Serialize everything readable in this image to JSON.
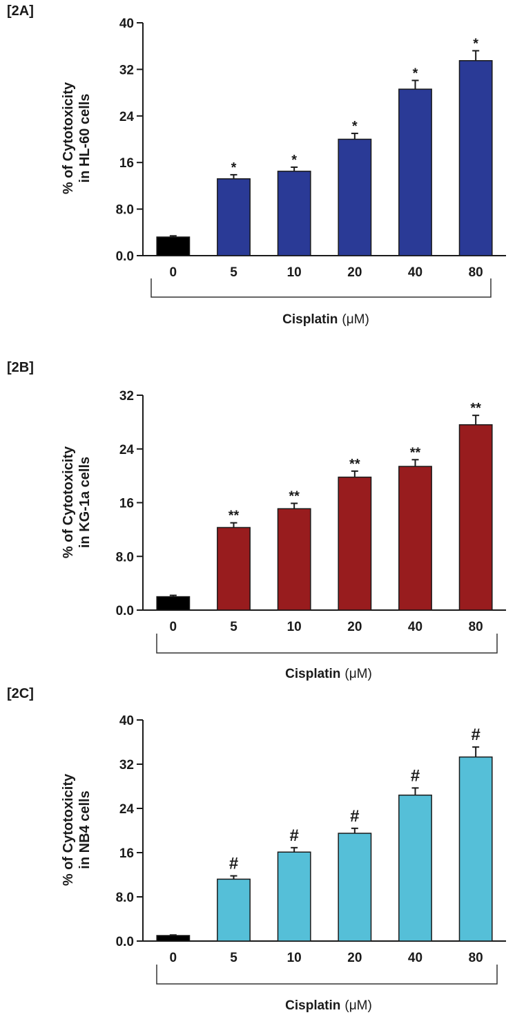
{
  "chart_data": [
    {
      "type": "bar",
      "panel_label": "[2A]",
      "categories": [
        "0",
        "5",
        "10",
        "20",
        "40",
        "80"
      ],
      "values": [
        3.2,
        13.2,
        14.5,
        20.0,
        28.6,
        33.5
      ],
      "errors": [
        0.2,
        0.7,
        0.7,
        1.0,
        1.5,
        1.7
      ],
      "significance": [
        "",
        "*",
        "*",
        "*",
        "*",
        "*"
      ],
      "bar_colors": [
        "#000000",
        "#2a3a96",
        "#2a3a96",
        "#2a3a96",
        "#2a3a96",
        "#2a3a96"
      ],
      "ylabel_line1": "% of Cytotoxicity",
      "ylabel_line2": "in HL-60 cells",
      "xlabel": "Cisplatin",
      "xlabel_unit": "(μM)",
      "ylim": [
        0,
        40
      ],
      "yticks": [
        0,
        8,
        16,
        24,
        32,
        40
      ],
      "ytick_labels": [
        "0.0",
        "8.0",
        "16",
        "24",
        "32",
        "40"
      ],
      "grid": false
    },
    {
      "type": "bar",
      "panel_label": "[2B]",
      "categories": [
        "0",
        "5",
        "10",
        "20",
        "40",
        "80"
      ],
      "values": [
        2.0,
        12.3,
        15.1,
        19.8,
        21.4,
        27.6
      ],
      "errors": [
        0.2,
        0.7,
        0.8,
        0.9,
        1.0,
        1.4
      ],
      "significance": [
        "",
        "**",
        "**",
        "**",
        "**",
        "**"
      ],
      "bar_colors": [
        "#000000",
        "#981c1e",
        "#981c1e",
        "#981c1e",
        "#981c1e",
        "#981c1e"
      ],
      "ylabel_line1": "% of Cytotoxicity",
      "ylabel_line2": "in KG-1a cells",
      "xlabel": "Cisplatin",
      "xlabel_unit": "(μM)",
      "ylim": [
        0,
        32
      ],
      "yticks": [
        0,
        8,
        16,
        24,
        32
      ],
      "ytick_labels": [
        "0.0",
        "8.0",
        "16",
        "24",
        "32"
      ],
      "grid": false
    },
    {
      "type": "bar",
      "panel_label": "[2C]",
      "categories": [
        "0",
        "5",
        "10",
        "20",
        "40",
        "80"
      ],
      "values": [
        1.0,
        11.2,
        16.1,
        19.5,
        26.4,
        33.3
      ],
      "errors": [
        0.1,
        0.6,
        0.8,
        0.9,
        1.3,
        1.8
      ],
      "significance": [
        "",
        "#",
        "#",
        "#",
        "#",
        "#"
      ],
      "bar_colors": [
        "#000000",
        "#55bfd8",
        "#55bfd8",
        "#55bfd8",
        "#55bfd8",
        "#55bfd8"
      ],
      "ylabel_line1": "% of Cytotoxicity",
      "ylabel_line2": "in NB4 cells",
      "xlabel": "Cisplatin",
      "xlabel_unit": "(μM)",
      "ylim": [
        0,
        40
      ],
      "yticks": [
        0,
        8,
        16,
        24,
        32,
        40
      ],
      "ytick_labels": [
        "0.0",
        "8.0",
        "16",
        "24",
        "32",
        "40"
      ],
      "grid": false
    }
  ]
}
